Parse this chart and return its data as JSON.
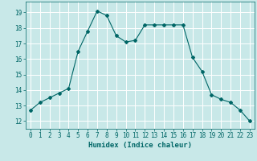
{
  "x": [
    0,
    1,
    2,
    3,
    4,
    5,
    6,
    7,
    8,
    9,
    10,
    11,
    12,
    13,
    14,
    15,
    16,
    17,
    18,
    19,
    20,
    21,
    22,
    23
  ],
  "y": [
    12.7,
    13.2,
    13.5,
    13.8,
    14.1,
    16.5,
    17.8,
    19.1,
    18.8,
    17.5,
    17.1,
    17.2,
    18.2,
    18.2,
    18.2,
    18.2,
    18.2,
    16.1,
    15.2,
    13.7,
    13.4,
    13.2,
    12.7,
    12.0
  ],
  "line_color": "#006666",
  "marker": "D",
  "marker_size": 2,
  "bg_color": "#c8e8e8",
  "grid_color": "#b0d8d8",
  "xlabel": "Humidex (Indice chaleur)",
  "xlim": [
    -0.5,
    23.5
  ],
  "ylim": [
    11.5,
    19.7
  ],
  "yticks": [
    12,
    13,
    14,
    15,
    16,
    17,
    18,
    19
  ],
  "xtick_labels": [
    "0",
    "1",
    "2",
    "3",
    "4",
    "5",
    "6",
    "7",
    "8",
    "9",
    "10",
    "11",
    "12",
    "13",
    "14",
    "15",
    "16",
    "17",
    "18",
    "19",
    "20",
    "21",
    "22",
    "23"
  ],
  "xlabel_fontsize": 6.5,
  "tick_fontsize": 5.5
}
